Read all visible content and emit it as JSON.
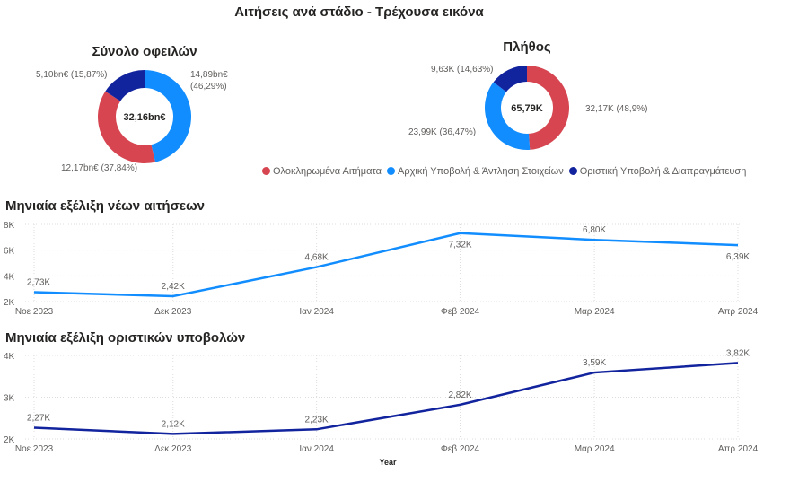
{
  "title": "Αιτήσεις ανά στάδιο - Τρέχουσα εικόνα",
  "colors": {
    "completed": "#D64550",
    "initial": "#118DFF",
    "final": "#12239E"
  },
  "legend": [
    "Ολοκληρωμένα Αιτήματα",
    "Αρχική Υποβολή & Άντληση Στοιχείων",
    "Οριστική Υποβολή & Διαπραγμάτευση"
  ],
  "chart_data": [
    {
      "type": "pie",
      "title": "Σύνολο οφειλών",
      "center_label": "32,16bn€",
      "slices": [
        {
          "name": "Αρχική Υποβολή & Άντληση Στοιχείων",
          "value": 14.89,
          "percent": 46.29,
          "label": "14,89bn€",
          "pct_label": "(46,29%)"
        },
        {
          "name": "Ολοκληρωμένα Αιτήματα",
          "value": 12.17,
          "percent": 37.84,
          "label": "12,17bn€ (37,84%)"
        },
        {
          "name": "Οριστική Υποβολή & Διαπραγμάτευση",
          "value": 5.1,
          "percent": 15.87,
          "label": "5,10bn€ (15,87%)"
        }
      ]
    },
    {
      "type": "pie",
      "title": "Πλήθος",
      "center_label": "65,79K",
      "slices": [
        {
          "name": "Ολοκληρωμένα Αιτήματα",
          "value": 32.17,
          "percent": 48.9,
          "label": "32,17K (48,9%)"
        },
        {
          "name": "Αρχική Υποβολή & Άντληση Στοιχείων",
          "value": 23.99,
          "percent": 36.47,
          "label": "23,99K (36,47%)"
        },
        {
          "name": "Οριστική Υποβολή & Διαπραγμάτευση",
          "value": 9.63,
          "percent": 14.63,
          "label": "9,63K (14,63%)"
        }
      ]
    },
    {
      "type": "line",
      "title": "Μηνιαία εξέλιξη νέων αιτήσεων",
      "x": [
        "2023-11-01",
        "2023-12-01",
        "2024-01-01",
        "2024-02-01",
        "2024-03-01",
        "2024-04-01"
      ],
      "xticks": [
        "Noε 2023",
        "Δεκ 2023",
        "Ιαν 2024",
        "Φεβ 2024",
        "Μαρ 2024",
        "Απρ 2024"
      ],
      "values": [
        2730,
        2420,
        4680,
        7320,
        6800,
        6390
      ],
      "labels": [
        "2,73K",
        "2,42K",
        "4,68K",
        "7,32K",
        "6,80K",
        "6,39K"
      ],
      "ylim": [
        2000,
        8000
      ],
      "yticks": [
        "2K",
        "4K",
        "6K",
        "8K"
      ],
      "grid": true,
      "color": "#118DFF"
    },
    {
      "type": "line",
      "title": "Μηνιαία εξέλιξη οριστικών υποβολών",
      "x": [
        "2023-11-01",
        "2023-12-01",
        "2024-01-01",
        "2024-02-01",
        "2024-03-01",
        "2024-04-01"
      ],
      "xticks": [
        "Noε 2023",
        "Δεκ 2023",
        "Ιαν 2024",
        "Φεβ 2024",
        "Μαρ 2024",
        "Απρ 2024"
      ],
      "values": [
        2270,
        2120,
        2230,
        2820,
        3590,
        3820
      ],
      "labels": [
        "2,27K",
        "2,12K",
        "2,23K",
        "2,82K",
        "3,59K",
        "3,82K"
      ],
      "ylim": [
        2000,
        4000
      ],
      "yticks": [
        "2K",
        "3K",
        "4K"
      ],
      "grid": true,
      "color": "#12239E",
      "xlabel": "Year"
    }
  ]
}
